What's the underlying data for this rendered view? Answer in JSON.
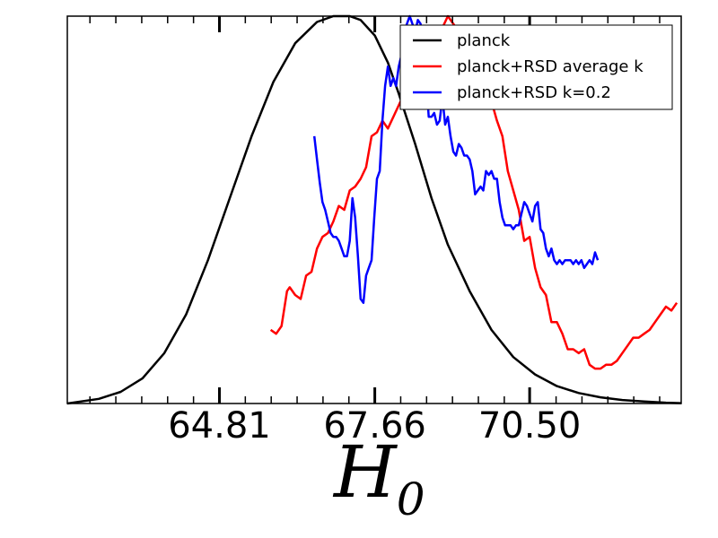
{
  "chart_data": {
    "type": "line",
    "xlabel": "H",
    "xlabel_subscript": "0",
    "ylabel": "",
    "xlim": [
      62.02,
      73.28
    ],
    "ylim": [
      0,
      1
    ],
    "xticks": [
      {
        "value": 64.81,
        "label": "64.81"
      },
      {
        "value": 67.66,
        "label": "67.66"
      },
      {
        "value": 70.5,
        "label": "70.50"
      }
    ],
    "legend_position": "top-right",
    "grid": false,
    "series": [
      {
        "name": "planck",
        "color": "#000000",
        "x": [
          62.02,
          62.6,
          63.0,
          63.4,
          63.8,
          64.2,
          64.6,
          65.0,
          65.4,
          65.8,
          66.2,
          66.6,
          66.9,
          67.2,
          67.4,
          67.66,
          67.9,
          68.1,
          68.4,
          68.7,
          69.0,
          69.4,
          69.8,
          70.2,
          70.6,
          71.0,
          71.4,
          71.8,
          72.2,
          72.6,
          73.0,
          73.28
        ],
        "y": [
          0.0,
          0.012,
          0.03,
          0.065,
          0.13,
          0.23,
          0.37,
          0.53,
          0.69,
          0.83,
          0.93,
          0.985,
          1.0,
          1.0,
          0.99,
          0.95,
          0.88,
          0.8,
          0.67,
          0.53,
          0.41,
          0.29,
          0.19,
          0.12,
          0.075,
          0.045,
          0.027,
          0.016,
          0.009,
          0.005,
          0.002,
          0.001
        ]
      },
      {
        "name": "planck+RSD average k",
        "color": "#ff0000",
        "x": [
          65.75,
          65.85,
          65.95,
          66.05,
          66.1,
          66.2,
          66.3,
          66.4,
          66.5,
          66.6,
          66.7,
          66.8,
          66.9,
          67.0,
          67.1,
          67.2,
          67.3,
          67.4,
          67.5,
          67.6,
          67.7,
          67.8,
          67.9,
          68.0,
          68.1,
          68.2,
          68.3,
          68.4,
          68.5,
          68.6,
          68.7,
          68.8,
          68.9,
          69.0,
          69.1,
          69.2,
          69.3,
          69.4,
          69.5,
          69.6,
          69.7,
          69.8,
          69.9,
          70.0,
          70.1,
          70.2,
          70.3,
          70.4,
          70.5,
          70.6,
          70.7,
          70.8,
          70.9,
          71.0,
          71.1,
          71.2,
          71.3,
          71.4,
          71.5,
          71.6,
          71.7,
          71.8,
          71.9,
          72.0,
          72.1,
          72.2,
          72.3,
          72.4,
          72.5,
          72.6,
          72.7,
          72.8,
          72.9,
          73.0,
          73.1,
          73.2
        ],
        "y": [
          0.19,
          0.18,
          0.2,
          0.29,
          0.3,
          0.28,
          0.27,
          0.33,
          0.34,
          0.4,
          0.43,
          0.44,
          0.47,
          0.51,
          0.5,
          0.55,
          0.56,
          0.58,
          0.61,
          0.69,
          0.7,
          0.73,
          0.71,
          0.74,
          0.77,
          0.8,
          0.83,
          0.85,
          0.87,
          0.9,
          0.93,
          0.95,
          0.97,
          1.0,
          0.98,
          0.96,
          0.95,
          0.93,
          0.89,
          0.86,
          0.82,
          0.78,
          0.73,
          0.69,
          0.6,
          0.55,
          0.5,
          0.42,
          0.43,
          0.35,
          0.3,
          0.28,
          0.21,
          0.21,
          0.18,
          0.14,
          0.14,
          0.13,
          0.14,
          0.1,
          0.09,
          0.09,
          0.1,
          0.1,
          0.11,
          0.13,
          0.15,
          0.17,
          0.17,
          0.18,
          0.19,
          0.21,
          0.23,
          0.25,
          0.24,
          0.26
        ]
      },
      {
        "name": "planck+RSD k=0.2",
        "color": "#0000ff",
        "x": [
          66.55,
          66.6,
          66.65,
          66.7,
          66.75,
          66.8,
          66.85,
          66.9,
          66.95,
          67.0,
          67.05,
          67.1,
          67.15,
          67.2,
          67.25,
          67.3,
          67.35,
          67.4,
          67.45,
          67.5,
          67.55,
          67.6,
          67.65,
          67.7,
          67.75,
          67.8,
          67.85,
          67.9,
          67.95,
          68.0,
          68.05,
          68.1,
          68.15,
          68.2,
          68.25,
          68.3,
          68.35,
          68.4,
          68.45,
          68.5,
          68.55,
          68.6,
          68.65,
          68.7,
          68.75,
          68.8,
          68.85,
          68.9,
          68.95,
          69.0,
          69.05,
          69.1,
          69.15,
          69.2,
          69.25,
          69.3,
          69.35,
          69.4,
          69.45,
          69.5,
          69.55,
          69.6,
          69.65,
          69.7,
          69.75,
          69.8,
          69.85,
          69.9,
          69.95,
          70.0,
          70.05,
          70.1,
          70.15,
          70.2,
          70.25,
          70.3,
          70.35,
          70.4,
          70.45,
          70.5,
          70.55,
          70.6,
          70.65,
          70.7,
          70.75,
          70.8,
          70.85,
          70.9,
          70.95,
          71.0,
          71.05,
          71.1,
          71.15,
          71.2,
          71.25,
          71.3,
          71.35,
          71.4,
          71.45,
          71.5,
          71.55,
          71.6,
          71.65,
          71.7,
          71.75
        ],
        "y": [
          0.69,
          0.63,
          0.57,
          0.52,
          0.5,
          0.47,
          0.44,
          0.43,
          0.43,
          0.42,
          0.4,
          0.38,
          0.38,
          0.42,
          0.53,
          0.48,
          0.38,
          0.27,
          0.26,
          0.33,
          0.35,
          0.37,
          0.48,
          0.58,
          0.6,
          0.73,
          0.82,
          0.87,
          0.82,
          0.84,
          0.82,
          0.87,
          0.9,
          0.96,
          0.98,
          1.0,
          0.98,
          0.96,
          0.99,
          0.98,
          0.9,
          0.84,
          0.74,
          0.74,
          0.75,
          0.72,
          0.73,
          0.79,
          0.72,
          0.74,
          0.69,
          0.65,
          0.64,
          0.67,
          0.66,
          0.64,
          0.64,
          0.63,
          0.6,
          0.54,
          0.55,
          0.56,
          0.55,
          0.6,
          0.59,
          0.6,
          0.58,
          0.58,
          0.52,
          0.48,
          0.46,
          0.46,
          0.46,
          0.45,
          0.46,
          0.46,
          0.49,
          0.52,
          0.51,
          0.49,
          0.47,
          0.51,
          0.52,
          0.45,
          0.44,
          0.4,
          0.38,
          0.4,
          0.37,
          0.36,
          0.37,
          0.36,
          0.37,
          0.37,
          0.37,
          0.36,
          0.37,
          0.36,
          0.37,
          0.35,
          0.36,
          0.37,
          0.36,
          0.39,
          0.37
        ]
      }
    ]
  }
}
